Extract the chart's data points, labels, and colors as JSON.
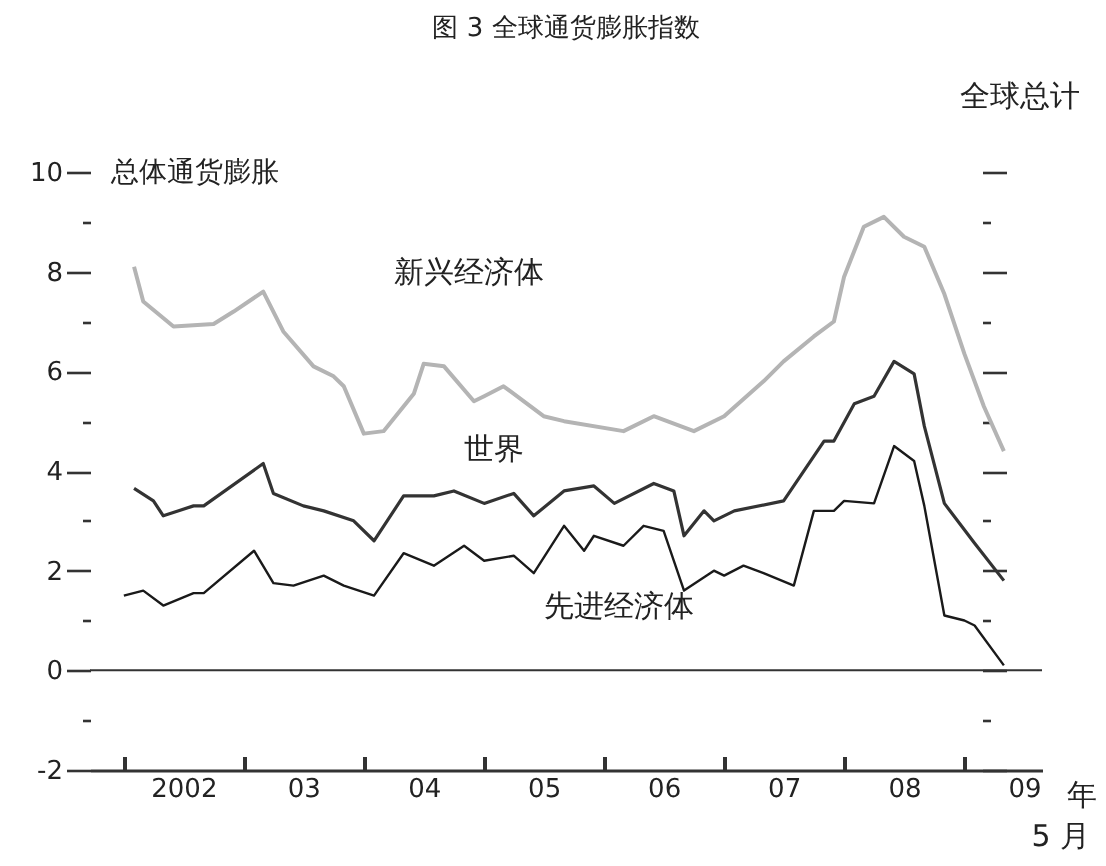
{
  "chart_data": {
    "type": "line",
    "title": "图 3 全球通货膨胀指数",
    "ylabel": "总体通货膨胀",
    "y2label": "全球总计",
    "xlabel": "年",
    "annotations": [
      "5 月"
    ],
    "xlim": [
      "2001-09-20",
      "2009-08-25"
    ],
    "ylim": [
      -2,
      10
    ],
    "xticks": [
      {
        "value": "2002",
        "label": null
      },
      {
        "value": "2002-07",
        "label": "2002"
      },
      {
        "value": "2003",
        "label": null
      },
      {
        "value": "2003-07",
        "label": "03"
      },
      {
        "value": "2004",
        "label": null
      },
      {
        "value": "2004-07",
        "label": "04"
      },
      {
        "value": "2005",
        "label": null
      },
      {
        "value": "2005-07",
        "label": "05"
      },
      {
        "value": "2006",
        "label": null
      },
      {
        "value": "2006-07",
        "label": "06"
      },
      {
        "value": "2007",
        "label": null
      },
      {
        "value": "2007-07",
        "label": "07"
      },
      {
        "value": "2008",
        "label": null
      },
      {
        "value": "2008-07",
        "label": "08"
      },
      {
        "value": "2009",
        "label": null
      },
      {
        "value": "2009-07",
        "label": "09"
      }
    ],
    "yticks": [
      -2,
      {
        "value": -1,
        "label": null
      },
      0,
      {
        "value": 1,
        "label": null
      },
      2,
      {
        "value": 3,
        "label": null
      },
      4,
      {
        "value": 5,
        "label": null
      },
      6,
      {
        "value": 7,
        "label": null
      },
      8,
      {
        "value": 9,
        "label": null
      },
      10
    ],
    "ref_lines": [
      {
        "axis": "y",
        "value": 0,
        "color": "#333333"
      }
    ],
    "series": [
      {
        "name": "新兴经济体",
        "color": "#b4b4b4",
        "x": [
          "2002-02",
          "2002-03",
          "2002-06",
          "2002-10",
          "2002-12",
          "2003-03",
          "2003-05",
          "2003-08",
          "2003-10",
          "2003-11",
          "2004-01",
          "2004-03",
          "2004-06",
          "2004-07",
          "2004-09",
          "2004-12",
          "2005-01",
          "2005-03",
          "2005-07",
          "2005-09",
          "2006-03",
          "2006-06",
          "2006-10",
          "2007-01",
          "2007-05",
          "2007-07",
          "2007-10",
          "2007-12",
          "2008-01",
          "2008-03",
          "2008-05",
          "2008-07",
          "2008-09",
          "2008-11",
          "2009-01",
          "2009-03",
          "2009-05"
        ],
        "values": [
          8.1,
          7.4,
          6.9,
          6.95,
          7.2,
          7.6,
          6.8,
          6.1,
          5.9,
          5.7,
          4.75,
          4.8,
          5.55,
          6.15,
          6.1,
          5.4,
          5.5,
          5.7,
          5.1,
          5.0,
          4.8,
          5.1,
          4.8,
          5.1,
          5.8,
          6.2,
          6.7,
          7.0,
          7.9,
          8.9,
          9.1,
          8.7,
          8.5,
          7.55,
          6.35,
          5.3,
          4.4
        ]
      },
      {
        "name": "世界",
        "color": "#333333",
        "x": [
          "2002-02",
          "2002-04",
          "2002-05",
          "2002-08",
          "2002-09",
          "2003-03",
          "2003-04",
          "2003-07",
          "2003-09",
          "2003-12",
          "2004-02",
          "2004-05",
          "2004-08",
          "2004-10",
          "2005-01",
          "2005-04",
          "2005-06",
          "2005-09",
          "2005-12",
          "2006-02",
          "2006-06",
          "2006-08",
          "2006-09",
          "2006-11",
          "2006-12",
          "2007-02",
          "2007-07",
          "2007-11",
          "2007-12",
          "2008-02",
          "2008-04",
          "2008-06",
          "2008-08",
          "2008-09",
          "2008-11",
          "2009-02",
          "2009-05"
        ],
        "values": [
          3.65,
          3.4,
          3.1,
          3.3,
          3.3,
          4.15,
          3.55,
          3.3,
          3.2,
          3.0,
          2.6,
          3.5,
          3.5,
          3.6,
          3.35,
          3.55,
          3.1,
          3.6,
          3.7,
          3.35,
          3.75,
          3.6,
          2.7,
          3.2,
          3.0,
          3.2,
          3.4,
          4.6,
          4.6,
          5.35,
          5.5,
          6.2,
          5.95,
          4.9,
          3.35,
          2.55,
          1.8
        ]
      },
      {
        "name": "先进经济体",
        "color": "#1a1a1a",
        "x": [
          "2002-01",
          "2002-03",
          "2002-05",
          "2002-08",
          "2002-09",
          "2003-02",
          "2003-04",
          "2003-06",
          "2003-09",
          "2003-11",
          "2004-02",
          "2004-05",
          "2004-08",
          "2004-11",
          "2005-01",
          "2005-04",
          "2005-06",
          "2005-09",
          "2005-11",
          "2005-12",
          "2006-03",
          "2006-05",
          "2006-07",
          "2006-09",
          "2006-12",
          "2007-01",
          "2007-03",
          "2007-05",
          "2007-08",
          "2007-10",
          "2007-12",
          "2008-01",
          "2008-04",
          "2008-06",
          "2008-08",
          "2008-09",
          "2008-11",
          "2009-01",
          "2009-02",
          "2009-05"
        ],
        "values": [
          1.5,
          1.6,
          1.3,
          1.55,
          1.55,
          2.4,
          1.75,
          1.7,
          1.9,
          1.7,
          1.5,
          2.35,
          2.1,
          2.5,
          2.2,
          2.3,
          1.95,
          2.9,
          2.4,
          2.7,
          2.5,
          2.9,
          2.8,
          1.6,
          2.0,
          1.9,
          2.1,
          1.95,
          1.7,
          3.2,
          3.2,
          3.4,
          3.35,
          4.5,
          4.2,
          3.3,
          1.1,
          1.0,
          0.9,
          0.1
        ]
      }
    ]
  }
}
